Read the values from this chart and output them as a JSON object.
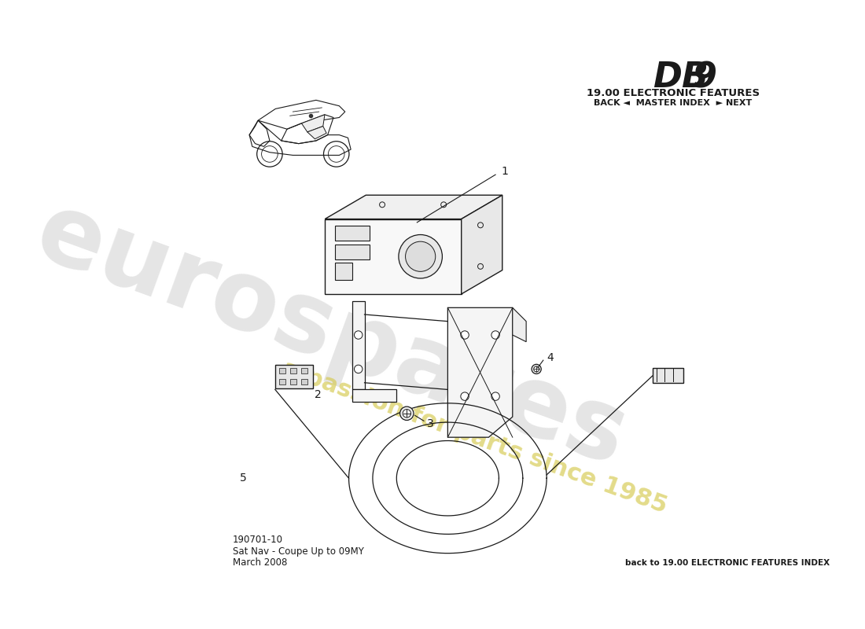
{
  "title_db": "DB",
  "title_9": "9",
  "title_section": "19.00 ELECTRONIC FEATURES",
  "title_nav": "BACK ◄  MASTER INDEX  ► NEXT",
  "part_number": "190701-10",
  "description_line1": "Sat Nav - Coupe Up to 09MY",
  "description_line2": "March 2008",
  "footer_right": "back to 19.00 ELECTRONIC FEATURES INDEX",
  "bg_color": "#ffffff",
  "line_color": "#1a1a1a",
  "watermark_text1": "eurospares",
  "watermark_text2": "a passion for parts since 1985"
}
